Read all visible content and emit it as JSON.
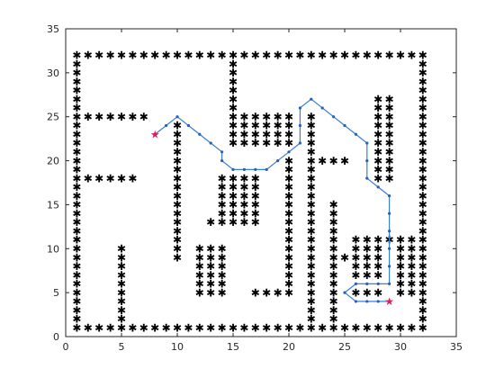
{
  "chart_data": {
    "type": "scatter",
    "title": "",
    "xlabel": "",
    "ylabel": "",
    "xlim": [
      0,
      35
    ],
    "ylim": [
      0,
      35
    ],
    "xticks": [
      "0",
      "5",
      "10",
      "15",
      "20",
      "25",
      "30",
      "35"
    ],
    "yticks": [
      "0",
      "5",
      "10",
      "15",
      "20",
      "25",
      "30",
      "35"
    ],
    "grid": false,
    "obstacle_symbol": "✱",
    "marker_symbol": "★",
    "colors": {
      "obstacle": "#000000",
      "path": "#3b7fd6",
      "marker": "#d6215e",
      "axis": "#262626"
    },
    "series": [
      {
        "name": "obstacles",
        "style": "asterisk",
        "segments": [
          {
            "axis": "h",
            "y": 32,
            "from": 1,
            "to": 32
          },
          {
            "axis": "h",
            "y": 1,
            "from": 1,
            "to": 32
          },
          {
            "axis": "v",
            "x": 1,
            "from": 2,
            "to": 31
          },
          {
            "axis": "v",
            "x": 32,
            "from": 2,
            "to": 31
          },
          {
            "axis": "h",
            "y": 25,
            "from": 2,
            "to": 7
          },
          {
            "axis": "h",
            "y": 18,
            "from": 2,
            "to": 6
          },
          {
            "axis": "v",
            "x": 5,
            "from": 2,
            "to": 10
          },
          {
            "axis": "v",
            "x": 10,
            "from": 9,
            "to": 24
          },
          {
            "axis": "v",
            "x": 15,
            "from": 22,
            "to": 31
          },
          {
            "axis": "h",
            "y": 25,
            "from": 16,
            "to": 20
          },
          {
            "axis": "h",
            "y": 24,
            "from": 16,
            "to": 20
          },
          {
            "axis": "h",
            "y": 23,
            "from": 16,
            "to": 20
          },
          {
            "axis": "h",
            "y": 22,
            "from": 16,
            "to": 20
          },
          {
            "axis": "v",
            "x": 14,
            "from": 14,
            "to": 18
          },
          {
            "axis": "v",
            "x": 15,
            "from": 14,
            "to": 18
          },
          {
            "axis": "v",
            "x": 16,
            "from": 14,
            "to": 18
          },
          {
            "axis": "v",
            "x": 17,
            "from": 14,
            "to": 18
          },
          {
            "axis": "h",
            "y": 13,
            "from": 13,
            "to": 17
          },
          {
            "axis": "v",
            "x": 12,
            "from": 5,
            "to": 10
          },
          {
            "axis": "v",
            "x": 13,
            "from": 5,
            "to": 10
          },
          {
            "axis": "v",
            "x": 14,
            "from": 5,
            "to": 10
          },
          {
            "axis": "h",
            "y": 5,
            "from": 17,
            "to": 20
          },
          {
            "axis": "v",
            "x": 20,
            "from": 5,
            "to": 20
          },
          {
            "axis": "v",
            "x": 22,
            "from": 2,
            "to": 25
          },
          {
            "axis": "h",
            "y": 20,
            "from": 23,
            "to": 25
          },
          {
            "axis": "v",
            "x": 24,
            "from": 2,
            "to": 15
          },
          {
            "axis": "v",
            "x": 28,
            "from": 18,
            "to": 27
          },
          {
            "axis": "v",
            "x": 29,
            "from": 18,
            "to": 27
          },
          {
            "axis": "h",
            "y": 11,
            "from": 26,
            "to": 28
          },
          {
            "axis": "h",
            "y": 10,
            "from": 26,
            "to": 28
          },
          {
            "axis": "h",
            "y": 9,
            "from": 26,
            "to": 28
          },
          {
            "axis": "h",
            "y": 8,
            "from": 26,
            "to": 28
          },
          {
            "axis": "h",
            "y": 7,
            "from": 26,
            "to": 28
          },
          {
            "axis": "h",
            "y": 5,
            "from": 26,
            "to": 28
          },
          {
            "axis": "v",
            "x": 31,
            "from": 5,
            "to": 11
          },
          {
            "axis": "v",
            "x": 30,
            "from": 5,
            "to": 11
          }
        ],
        "points": [
          [
            25,
            9
          ],
          [
            30,
            5
          ],
          [
            29,
            11
          ]
        ]
      },
      {
        "name": "path",
        "style": "line-dots",
        "points": [
          [
            8,
            23
          ],
          [
            9,
            24
          ],
          [
            10,
            25
          ],
          [
            11,
            24
          ],
          [
            12,
            23
          ],
          [
            13,
            22
          ],
          [
            14,
            21
          ],
          [
            14,
            20
          ],
          [
            15,
            19
          ],
          [
            16,
            19
          ],
          [
            17,
            19
          ],
          [
            18,
            19
          ],
          [
            19,
            20
          ],
          [
            20,
            21
          ],
          [
            21,
            22
          ],
          [
            21,
            24
          ],
          [
            21,
            26
          ],
          [
            22,
            27
          ],
          [
            23,
            26
          ],
          [
            24,
            25
          ],
          [
            25,
            24
          ],
          [
            26,
            23
          ],
          [
            27,
            22
          ],
          [
            27,
            20
          ],
          [
            27,
            18
          ],
          [
            28,
            17
          ],
          [
            29,
            16
          ],
          [
            29,
            14
          ],
          [
            29,
            12
          ],
          [
            29,
            10
          ],
          [
            29,
            8
          ],
          [
            29,
            6
          ],
          [
            28,
            6
          ],
          [
            27,
            6
          ],
          [
            26,
            6
          ],
          [
            25,
            5
          ],
          [
            26,
            4
          ],
          [
            27,
            4
          ],
          [
            28,
            4
          ],
          [
            29,
            4
          ]
        ]
      },
      {
        "name": "endpoints",
        "style": "star",
        "points": [
          [
            8,
            23
          ],
          [
            29,
            4
          ]
        ]
      }
    ]
  }
}
